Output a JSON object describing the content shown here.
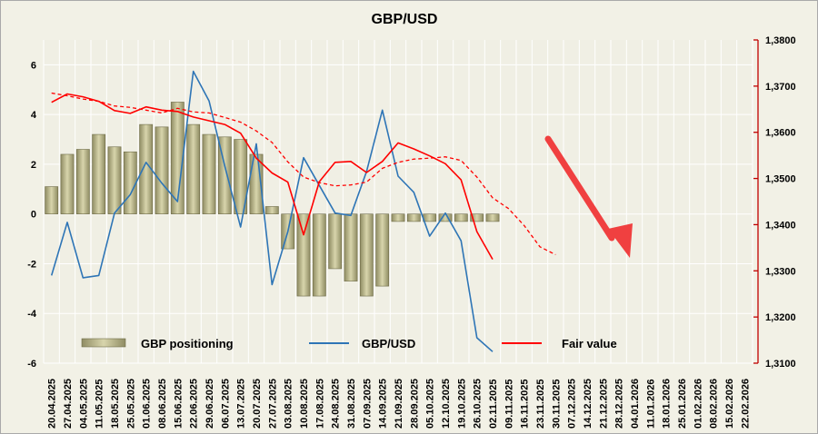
{
  "chart_data": {
    "type": "bar+line",
    "title": "GBP/USD",
    "x_labels": [
      "20.04.2025",
      "27.04.2025",
      "04.05.2025",
      "11.05.2025",
      "18.05.2025",
      "25.05.2025",
      "01.06.2025",
      "08.06.2025",
      "15.06.2025",
      "22.06.2025",
      "29.06.2025",
      "06.07.2025",
      "13.07.2025",
      "20.07.2025",
      "27.07.2025",
      "03.08.2025",
      "10.08.2025",
      "17.08.2025",
      "24.08.2025",
      "31.08.2025",
      "07.09.2025",
      "14.09.2025",
      "21.09.2025",
      "28.09.2025",
      "05.10.2025",
      "12.10.2025",
      "19.10.2025",
      "26.10.2025",
      "02.11.2025",
      "09.11.2025",
      "16.11.2025",
      "23.11.2025",
      "30.11.2025",
      "07.12.2025",
      "14.12.2025",
      "21.12.2025",
      "28.12.2025",
      "04.01.2026",
      "11.01.2026",
      "18.01.2026",
      "25.01.2026",
      "01.02.2026",
      "08.02.2026",
      "15.02.2026",
      "22.02.2026"
    ],
    "left_axis": {
      "min": -6,
      "max": 7,
      "ticks": [
        "6",
        "4",
        "2",
        "0",
        "-2",
        "-4",
        "-6"
      ],
      "tick_values": [
        6,
        4,
        2,
        0,
        -2,
        -4,
        -6
      ]
    },
    "right_axis": {
      "min": 1.31,
      "max": 1.38,
      "ticks": [
        "1,3800",
        "1,3700",
        "1,3600",
        "1,3500",
        "1,3400",
        "1,3300",
        "1,3200",
        "1,3100"
      ],
      "tick_values": [
        1.38,
        1.37,
        1.36,
        1.35,
        1.34,
        1.33,
        1.32,
        1.31
      ]
    },
    "grid": true,
    "series": [
      {
        "name": "GBP positioning",
        "kind": "bar",
        "axis": "left",
        "color": "#c8c59a",
        "values": [
          1.1,
          2.4,
          2.6,
          3.2,
          2.7,
          2.5,
          3.6,
          3.5,
          4.5,
          3.6,
          3.2,
          3.1,
          3.0,
          2.4,
          0.3,
          -1.4,
          -3.3,
          -3.3,
          -2.2,
          -2.7,
          -3.3,
          -2.9,
          -0.3,
          -0.3,
          -0.3,
          -0.3,
          -0.3,
          -0.3,
          -0.3
        ]
      },
      {
        "name": "GBP/USD",
        "kind": "line",
        "axis": "right",
        "color": "#2e75b6",
        "values": [
          1.329,
          1.3405,
          1.3285,
          1.329,
          1.3425,
          1.3465,
          1.3535,
          1.349,
          1.345,
          1.3732,
          1.3668,
          1.3527,
          1.3395,
          1.3575,
          1.327,
          1.3385,
          1.3545,
          1.3485,
          1.3425,
          1.342,
          1.3515,
          1.3648,
          1.3505,
          1.347,
          1.3375,
          1.3425,
          1.3365,
          1.3155,
          1.3125
        ]
      },
      {
        "name": "Fair value",
        "kind": "line",
        "axis": "right",
        "color": "#ff0000",
        "values": [
          1.3665,
          1.3683,
          1.3677,
          1.3667,
          1.3647,
          1.3641,
          1.3655,
          1.3648,
          1.3645,
          1.3633,
          1.3625,
          1.3617,
          1.3598,
          1.3544,
          1.3512,
          1.3492,
          1.3378,
          1.3493,
          1.3535,
          1.3537,
          1.3513,
          1.3537,
          1.3577,
          1.3564,
          1.3549,
          1.3532,
          1.3497,
          1.3385,
          1.3325
        ]
      },
      {
        "name": "Fair value forecast",
        "kind": "line",
        "axis": "right",
        "color": "#ff0000",
        "dashed": true,
        "values": [
          1.3685,
          1.3679,
          1.3672,
          1.3667,
          1.3657,
          1.3654,
          1.3648,
          1.3642,
          1.3652,
          1.3644,
          1.3642,
          1.3632,
          1.3622,
          1.3603,
          1.3578,
          1.3536,
          1.3503,
          1.3491,
          1.3484,
          1.3486,
          1.3492,
          1.3522,
          1.3535,
          1.3542,
          1.3544,
          1.3547,
          1.3539,
          1.3503,
          1.3458,
          1.3435,
          1.3398,
          1.3352,
          1.3335
        ]
      }
    ],
    "legend": [
      {
        "label": "GBP positioning",
        "kind": "bar",
        "color": "#c8c59a"
      },
      {
        "label": "GBP/USD",
        "kind": "line",
        "color": "#2e75b6"
      },
      {
        "label": "Fair value",
        "kind": "line",
        "color": "#ff0000"
      }
    ],
    "annotation": {
      "shape": "arrow",
      "direction": "down-right",
      "color": "#f04040"
    }
  }
}
